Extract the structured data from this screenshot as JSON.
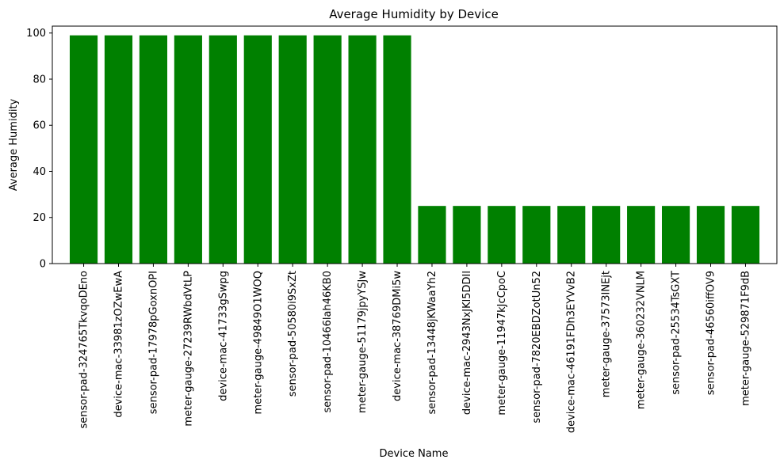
{
  "chart_data": {
    "type": "bar",
    "title": "Average Humidity by Device",
    "xlabel": "Device Name",
    "ylabel": "Average Humidity",
    "ylim": [
      0,
      103
    ],
    "yticks": [
      0,
      20,
      40,
      60,
      80,
      100
    ],
    "grid": false,
    "bar_color": "#008000",
    "categories": [
      "sensor-pad-324765TkvqoDEno",
      "device-mac-33981zOZwEwA",
      "sensor-pad-17978pGoxnOPI",
      "meter-gauge-27239RWbdVtLP",
      "device-mac-41733gSwpg",
      "meter-gauge-49849O1WOQ",
      "sensor-pad-50580i9SxZt",
      "sensor-pad-10466lah46KB0",
      "meter-gauge-51179jpyYSJw",
      "device-mac-38769DMi5w",
      "sensor-pad-13448jKWaaYh2",
      "device-mac-2943NxJKl5DDIl",
      "meter-gauge-11947kJcCpoC",
      "sensor-pad-7820EBDZotUn52",
      "device-mac-46191FDh3EYVvB2",
      "meter-gauge-37573INEjt",
      "meter-gauge-360232VNLM",
      "sensor-pad-25534TsGXT",
      "sensor-pad-46560iffOV9",
      "meter-gauge-529871F9dB"
    ],
    "values": [
      99,
      99,
      99,
      99,
      99,
      99,
      99,
      99,
      99,
      99,
      25,
      25,
      25,
      25,
      25,
      25,
      25,
      25,
      25,
      25
    ]
  }
}
